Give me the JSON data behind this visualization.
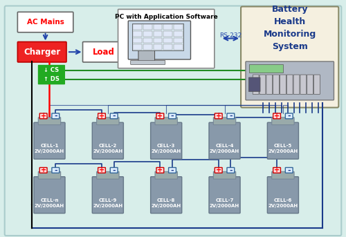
{
  "bg_color": "#d8eeea",
  "border_color": "#aacccc",
  "title": "Battery Health Monitoring System",
  "ac_mains_label": "AC Mains",
  "charger_label": "Charger",
  "load_label": "Load",
  "pc_label": "PC with Application Software",
  "rs232_label": "RS-232",
  "bhms_label": "Battery\nHealth\nMonitoring\nSystem",
  "cs_label": "↓ CS",
  "ds_label": "↑ DS",
  "cells_row1": [
    "CELL-1\n2V/2000AH",
    "CELL-2\n2V/2000AH",
    "CELL-3\n2V/2000AH",
    "CELL-4\n2V/2000AH",
    "CELL-5\n2V/2000AH"
  ],
  "cells_row2": [
    "CELL-n\n2V/2000AH",
    "CELL-9\n2V/2000AH",
    "CELL-8\n2V/2000AH",
    "CELL-7\n2V/2000AH",
    "CELL-6\n2V/2000AH"
  ],
  "box_facecolor": "white",
  "charger_facecolor": "#ff2222",
  "charger_textcolor": "white",
  "green_color": "#228B22",
  "blue_color": "#1a3a8a",
  "red_color": "#cc0000",
  "arrow_blue": "#2244aa",
  "bhms_box_color": "#f5f0e0",
  "bhms_text_color": "#1a3a8a",
  "cell_color": "#7a8a99",
  "cell_text_color": "white"
}
